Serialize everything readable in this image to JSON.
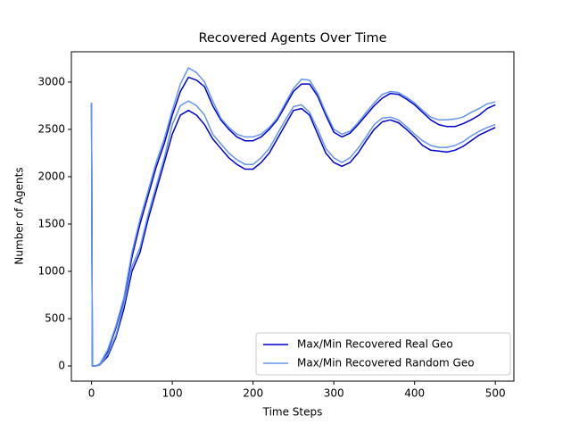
{
  "chart_data": {
    "type": "line",
    "title": "Recovered Agents Over Time",
    "x_label": "Time Steps",
    "y_label": "Number of Agents",
    "x": [
      0,
      1,
      5,
      10,
      20,
      30,
      40,
      50,
      60,
      70,
      80,
      90,
      100,
      110,
      120,
      130,
      140,
      150,
      160,
      170,
      180,
      190,
      200,
      210,
      220,
      230,
      240,
      250,
      260,
      270,
      280,
      290,
      300,
      310,
      320,
      330,
      340,
      350,
      360,
      370,
      380,
      390,
      400,
      410,
      420,
      430,
      440,
      450,
      460,
      470,
      480,
      490,
      500
    ],
    "series": [
      {
        "name": "Max/Min Recovered Real Geo",
        "color": "#0000cd",
        "max": [
          2780,
          0,
          0,
          20,
          150,
          400,
          700,
          1150,
          1500,
          1800,
          2100,
          2350,
          2650,
          2900,
          3050,
          3020,
          2950,
          2750,
          2600,
          2500,
          2420,
          2380,
          2380,
          2420,
          2500,
          2600,
          2750,
          2900,
          2980,
          2980,
          2850,
          2650,
          2470,
          2420,
          2460,
          2550,
          2650,
          2750,
          2830,
          2880,
          2870,
          2820,
          2760,
          2680,
          2600,
          2550,
          2530,
          2530,
          2560,
          2600,
          2650,
          2720,
          2760
        ],
        "min": [
          2760,
          0,
          0,
          10,
          100,
          300,
          600,
          1000,
          1200,
          1550,
          1850,
          2150,
          2450,
          2650,
          2700,
          2650,
          2550,
          2400,
          2300,
          2200,
          2130,
          2080,
          2080,
          2150,
          2250,
          2400,
          2550,
          2700,
          2720,
          2650,
          2450,
          2250,
          2150,
          2110,
          2150,
          2250,
          2380,
          2500,
          2580,
          2600,
          2570,
          2500,
          2420,
          2330,
          2280,
          2270,
          2260,
          2280,
          2320,
          2380,
          2440,
          2480,
          2520
        ]
      },
      {
        "name": "Max/Min Recovered Random Geo",
        "color": "#6495ed",
        "max": [
          2780,
          0,
          0,
          20,
          170,
          420,
          720,
          1200,
          1550,
          1850,
          2150,
          2400,
          2700,
          2980,
          3150,
          3100,
          3000,
          2800,
          2620,
          2520,
          2450,
          2420,
          2420,
          2450,
          2520,
          2620,
          2780,
          2930,
          3030,
          3020,
          2880,
          2680,
          2500,
          2450,
          2480,
          2570,
          2680,
          2780,
          2870,
          2900,
          2890,
          2840,
          2780,
          2700,
          2630,
          2600,
          2600,
          2610,
          2630,
          2680,
          2720,
          2770,
          2790
        ],
        "min": [
          2760,
          0,
          0,
          10,
          120,
          320,
          650,
          1050,
          1250,
          1600,
          1900,
          2200,
          2550,
          2750,
          2800,
          2750,
          2650,
          2450,
          2350,
          2250,
          2180,
          2130,
          2130,
          2200,
          2300,
          2450,
          2600,
          2740,
          2760,
          2680,
          2500,
          2300,
          2200,
          2150,
          2200,
          2300,
          2420,
          2550,
          2620,
          2630,
          2600,
          2530,
          2450,
          2380,
          2330,
          2310,
          2310,
          2330,
          2370,
          2430,
          2480,
          2520,
          2550
        ]
      }
    ],
    "xlim": [
      -25,
      523
    ],
    "ylim": [
      -160,
      3320
    ],
    "xticks": [
      0,
      100,
      200,
      300,
      400,
      500
    ],
    "yticks": [
      0,
      500,
      1000,
      1500,
      2000,
      2500,
      3000
    ],
    "legend": "lower right"
  }
}
